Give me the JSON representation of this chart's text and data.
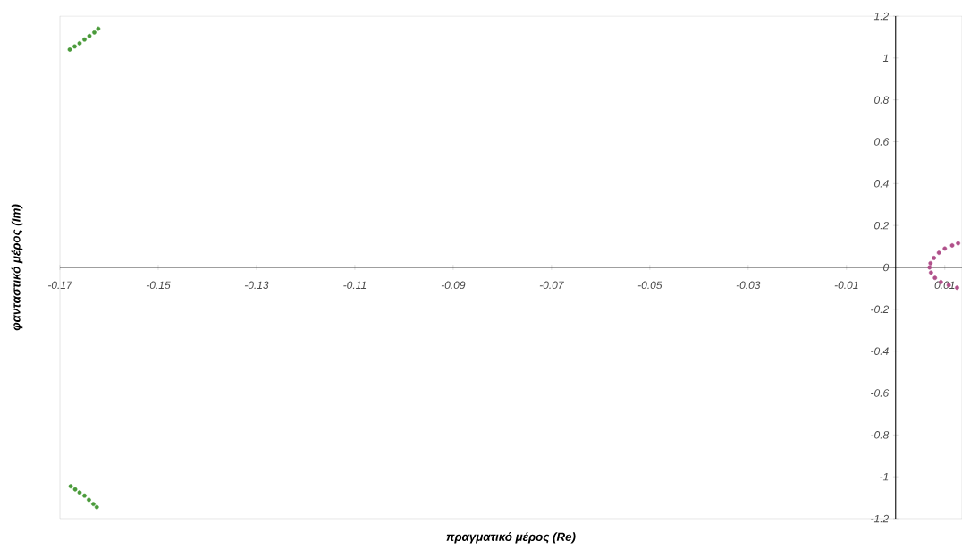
{
  "chart_data": {
    "type": "scatter",
    "xlabel": "πραγματικό μέρος (Re)",
    "ylabel": "φανταστικό μέρος (Im)",
    "xlim": [
      -0.17,
      0.0135
    ],
    "ylim": [
      -1.2,
      1.2
    ],
    "xticks": [
      -0.17,
      -0.15,
      -0.13,
      -0.11,
      -0.09,
      -0.07,
      -0.05,
      -0.03,
      -0.01,
      0.01
    ],
    "yticks": [
      -1.2,
      -1,
      -0.8,
      -0.6,
      -0.4,
      -0.2,
      0,
      0.2,
      0.4,
      0.6,
      0.8,
      1,
      1.2
    ],
    "series": [
      {
        "color": "#4a9a3a",
        "x": [
          -0.168,
          -0.167,
          -0.166,
          -0.165,
          -0.164,
          -0.163,
          -0.1622
        ],
        "values": [
          1.04,
          1.055,
          1.07,
          1.088,
          1.105,
          1.122,
          1.14
        ]
      },
      {
        "color": "#4a9a3a",
        "x": [
          -0.1678,
          -0.1669,
          -0.166,
          -0.165,
          -0.1641,
          -0.1632,
          -0.1625
        ],
        "values": [
          -1.045,
          -1.06,
          -1.075,
          -1.09,
          -1.11,
          -1.13,
          -1.145
        ]
      },
      {
        "color": "#b0508a",
        "x": [
          0.0127,
          0.0115,
          0.01,
          0.0088,
          0.0078,
          0.0071,
          0.0069,
          0.0072,
          0.008,
          0.0092,
          0.0108,
          0.0125
        ],
        "values": [
          0.115,
          0.105,
          0.09,
          0.07,
          0.045,
          0.02,
          0,
          -0.025,
          -0.05,
          -0.07,
          -0.085,
          -0.097
        ]
      }
    ]
  }
}
